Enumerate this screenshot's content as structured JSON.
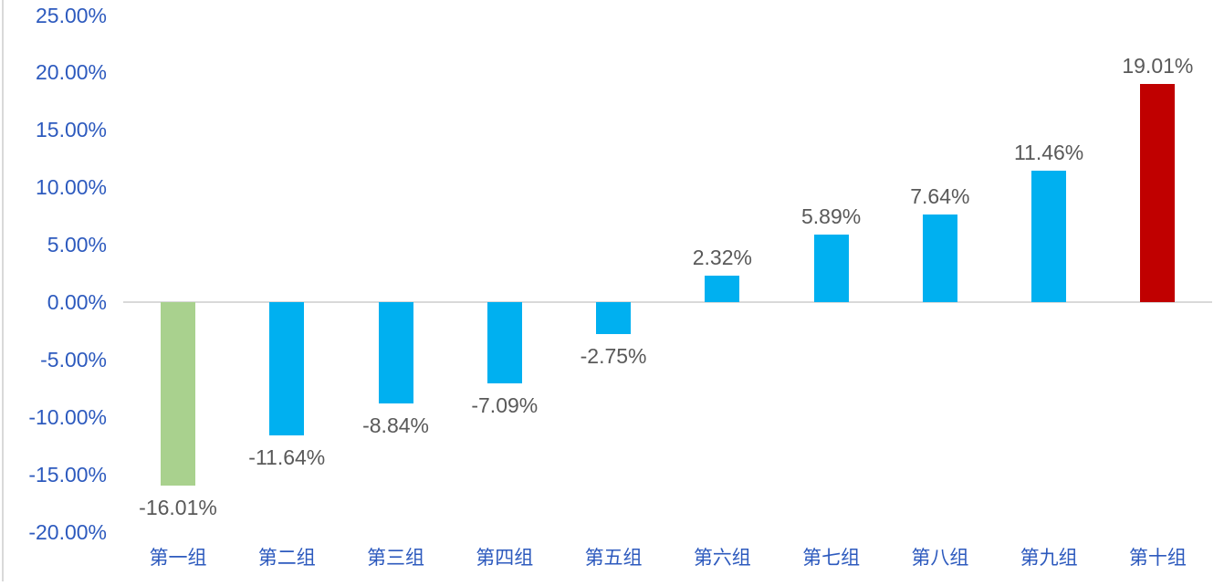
{
  "chart_data": {
    "type": "bar",
    "categories": [
      "第一组",
      "第二组",
      "第三组",
      "第四组",
      "第五组",
      "第六组",
      "第七组",
      "第八组",
      "第九组",
      "第十组"
    ],
    "values": [
      -16.01,
      -11.64,
      -8.84,
      -7.09,
      -2.75,
      2.32,
      5.89,
      7.64,
      11.46,
      19.01
    ],
    "data_labels": [
      "-16.01%",
      "-11.64%",
      "-8.84%",
      "-7.09%",
      "-2.75%",
      "2.32%",
      "5.89%",
      "7.64%",
      "11.46%",
      "19.01%"
    ],
    "bar_colors": [
      "#a9d18e",
      "#00b0f0",
      "#00b0f0",
      "#00b0f0",
      "#00b0f0",
      "#00b0f0",
      "#00b0f0",
      "#00b0f0",
      "#00b0f0",
      "#c00000"
    ],
    "y_ticks": [
      "25.00%",
      "20.00%",
      "15.00%",
      "10.00%",
      "5.00%",
      "0.00%",
      "-5.00%",
      "-10.00%",
      "-15.00%",
      "-20.00%"
    ],
    "y_tick_values": [
      25,
      20,
      15,
      10,
      5,
      0,
      -5,
      -10,
      -15,
      -20
    ],
    "ylim": [
      -20,
      25
    ],
    "xlabel": "",
    "ylabel": "",
    "grid": false,
    "legend": "none",
    "colors": {
      "axis_label": "#2d5abe",
      "data_label": "#595959",
      "axis_line": "#d9d9d9",
      "bar_green": "#a9d18e",
      "bar_cyan": "#00b0f0",
      "bar_red": "#c00000",
      "background": "#ffffff"
    }
  }
}
